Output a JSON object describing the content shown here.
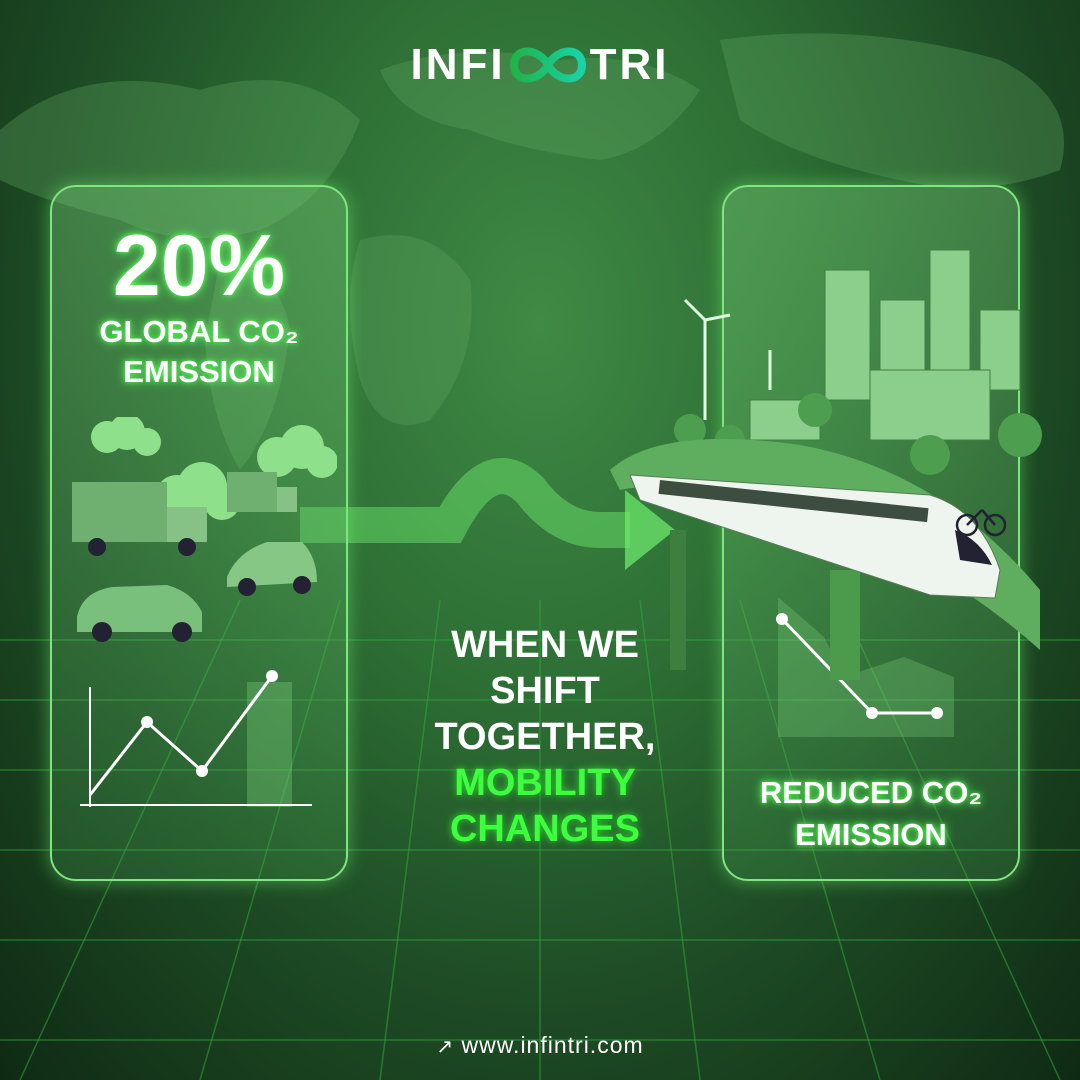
{
  "brand": {
    "logo_left": "INFI",
    "logo_right": "TRI",
    "logo_colors": [
      "#1fb34a",
      "#19d3a8"
    ]
  },
  "left_panel": {
    "percent": "20%",
    "line1": "GLOBAL CO₂",
    "line2": "EMISSION",
    "chart_trend": "rising",
    "icons": [
      "truck-icon",
      "car-icon",
      "smoke-cloud-icon"
    ]
  },
  "center": {
    "line1": "WHEN WE",
    "line2": "SHIFT",
    "line3": "TOGETHER,",
    "highlight1": "MOBILITY",
    "highlight2": "CHANGES"
  },
  "right_panel": {
    "line1": "REDUCED CO₂",
    "line2": "EMISSION",
    "chart_trend": "falling",
    "icons": [
      "train-icon",
      "city-icon",
      "wind-turbine-icon",
      "tree-icon",
      "bicycle-icon"
    ]
  },
  "footer": {
    "url": "www.infintri.com",
    "icon": "arrow-up-right-icon"
  },
  "colors": {
    "accent": "#3dff3d",
    "background": "#2d6e34"
  }
}
